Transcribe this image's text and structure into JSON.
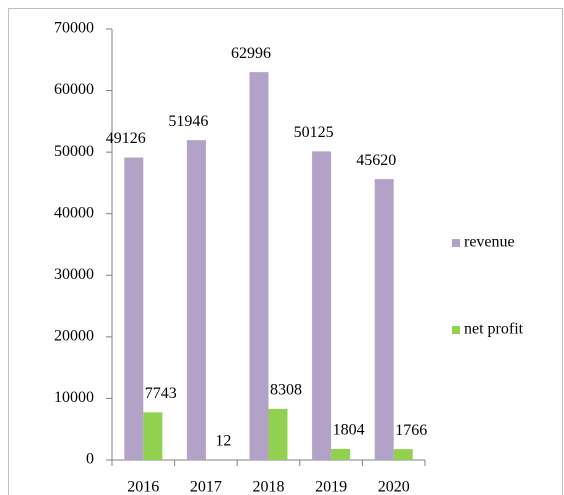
{
  "chart_data": {
    "type": "bar",
    "categories": [
      "2016",
      "2017",
      "2018",
      "2019",
      "2020"
    ],
    "series": [
      {
        "name": "revenue",
        "color": "#b3a2c7",
        "values": [
          49126,
          51946,
          62996,
          50125,
          45620
        ]
      },
      {
        "name": "net profit",
        "color": "#92d050",
        "values": [
          7743,
          12,
          8308,
          1804,
          1766
        ]
      }
    ],
    "ylim": [
      0,
      70000
    ],
    "yticks": [
      0,
      10000,
      20000,
      30000,
      40000,
      50000,
      60000,
      70000
    ],
    "grid": false,
    "legend": "right",
    "data_labels": true
  }
}
